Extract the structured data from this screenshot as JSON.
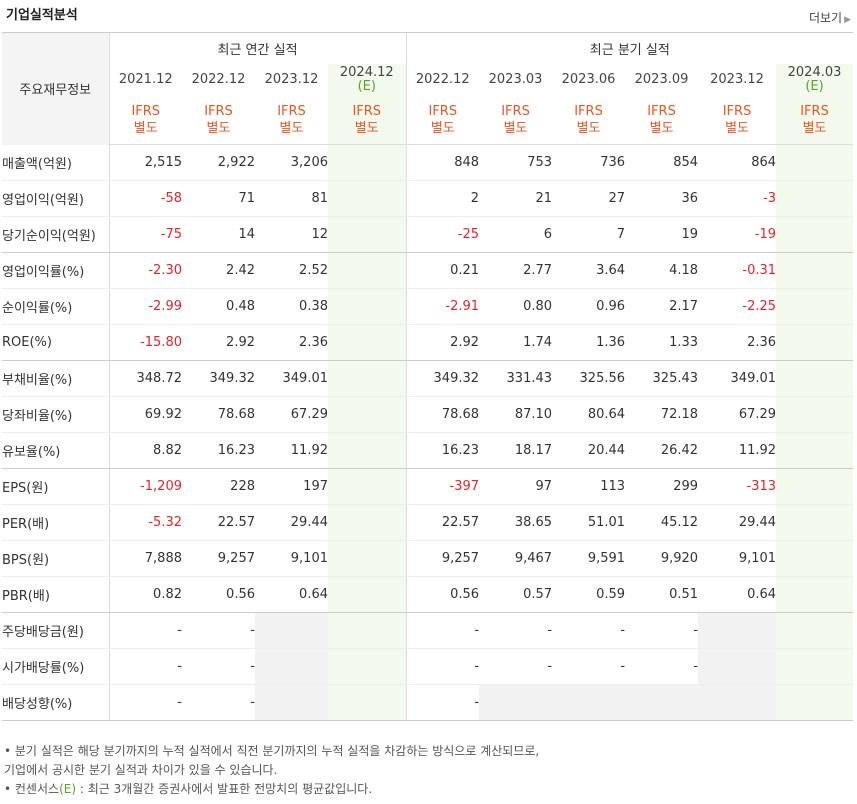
{
  "title": "기업실적분석",
  "more_label": "더보기",
  "more_arrow": "▶",
  "side_header": "주요재무정보",
  "groups": {
    "annual": "최근 연간 실적",
    "quarter": "최근 분기 실적"
  },
  "annual_periods": [
    {
      "label": "2021.12",
      "sub": ""
    },
    {
      "label": "2022.12",
      "sub": ""
    },
    {
      "label": "2023.12",
      "sub": ""
    },
    {
      "label": "2024.12",
      "sub": "(E)"
    }
  ],
  "quarter_periods": [
    {
      "label": "2022.12",
      "sub": ""
    },
    {
      "label": "2023.03",
      "sub": ""
    },
    {
      "label": "2023.06",
      "sub": ""
    },
    {
      "label": "2023.09",
      "sub": ""
    },
    {
      "label": "2023.12",
      "sub": ""
    },
    {
      "label": "2024.03",
      "sub": "(E)"
    }
  ],
  "ifrs_line1": "IFRS",
  "ifrs_line2": "별도",
  "rows": [
    {
      "label": "매출액(억원)",
      "annual": [
        "2,515",
        "2,922",
        "3,206",
        ""
      ],
      "quarter": [
        "848",
        "753",
        "736",
        "854",
        "864",
        ""
      ]
    },
    {
      "label": "영업이익(억원)",
      "annual": [
        "-58",
        "71",
        "81",
        ""
      ],
      "quarter": [
        "2",
        "21",
        "27",
        "36",
        "-3",
        ""
      ]
    },
    {
      "label": "당기순이익(억원)",
      "annual": [
        "-75",
        "14",
        "12",
        ""
      ],
      "quarter": [
        "-25",
        "6",
        "7",
        "19",
        "-19",
        ""
      ]
    },
    {
      "label": "영업이익률(%)",
      "annual": [
        "-2.30",
        "2.42",
        "2.52",
        ""
      ],
      "quarter": [
        "0.21",
        "2.77",
        "3.64",
        "4.18",
        "-0.31",
        ""
      ]
    },
    {
      "label": "순이익률(%)",
      "annual": [
        "-2.99",
        "0.48",
        "0.38",
        ""
      ],
      "quarter": [
        "-2.91",
        "0.80",
        "0.96",
        "2.17",
        "-2.25",
        ""
      ]
    },
    {
      "label": "ROE(%)",
      "annual": [
        "-15.80",
        "2.92",
        "2.36",
        ""
      ],
      "quarter": [
        "2.92",
        "1.74",
        "1.36",
        "1.33",
        "2.36",
        ""
      ]
    },
    {
      "label": "부채비율(%)",
      "annual": [
        "348.72",
        "349.32",
        "349.01",
        ""
      ],
      "quarter": [
        "349.32",
        "331.43",
        "325.56",
        "325.43",
        "349.01",
        ""
      ]
    },
    {
      "label": "당좌비율(%)",
      "annual": [
        "69.92",
        "78.68",
        "67.29",
        ""
      ],
      "quarter": [
        "78.68",
        "87.10",
        "80.64",
        "72.18",
        "67.29",
        ""
      ]
    },
    {
      "label": "유보율(%)",
      "annual": [
        "8.82",
        "16.23",
        "11.92",
        ""
      ],
      "quarter": [
        "16.23",
        "18.17",
        "20.44",
        "26.42",
        "11.92",
        ""
      ]
    },
    {
      "label": "EPS(원)",
      "annual": [
        "-1,209",
        "228",
        "197",
        ""
      ],
      "quarter": [
        "-397",
        "97",
        "113",
        "299",
        "-313",
        ""
      ]
    },
    {
      "label": "PER(배)",
      "annual": [
        "-5.32",
        "22.57",
        "29.44",
        ""
      ],
      "quarter": [
        "22.57",
        "38.65",
        "51.01",
        "45.12",
        "29.44",
        ""
      ]
    },
    {
      "label": "BPS(원)",
      "annual": [
        "7,888",
        "9,257",
        "9,101",
        ""
      ],
      "quarter": [
        "9,257",
        "9,467",
        "9,591",
        "9,920",
        "9,101",
        ""
      ]
    },
    {
      "label": "PBR(배)",
      "annual": [
        "0.82",
        "0.56",
        "0.64",
        ""
      ],
      "quarter": [
        "0.56",
        "0.57",
        "0.59",
        "0.51",
        "0.64",
        ""
      ]
    },
    {
      "label": "주당배당금(원)",
      "annual": [
        "-",
        "-",
        null,
        ""
      ],
      "quarter": [
        "-",
        "-",
        "-",
        "-",
        null,
        ""
      ]
    },
    {
      "label": "시가배당률(%)",
      "annual": [
        "-",
        "-",
        null,
        ""
      ],
      "quarter": [
        "-",
        "-",
        "-",
        "-",
        null,
        ""
      ]
    },
    {
      "label": "배당성향(%)",
      "annual": [
        "-",
        "-",
        null,
        ""
      ],
      "quarter": [
        "-",
        null,
        null,
        null,
        null,
        ""
      ]
    }
  ],
  "notes": [
    {
      "bullet": "•",
      "text": " 분기 실적은 해당 분기까지의 누적 실적에서 직전 분기까지의 누적 실적을 차감하는 방식으로 계산되므로,"
    },
    {
      "bullet": "",
      "text": "   기업에서 공시한 분기 실적과 차이가 있을 수 있습니다."
    },
    {
      "bullet": "•",
      "text": " 컨센서스",
      "e": "(E)",
      "tail": " : 최근 3개월간 증권사에서 발표한 전망치의 평균값입니다."
    }
  ],
  "colors": {
    "ifrs": "#e8571f",
    "negative": "#e5242b",
    "estimate_text": "#5aa02c",
    "estimate_bg": "#f4f9ee",
    "empty_bg": "#f2f2f2"
  }
}
